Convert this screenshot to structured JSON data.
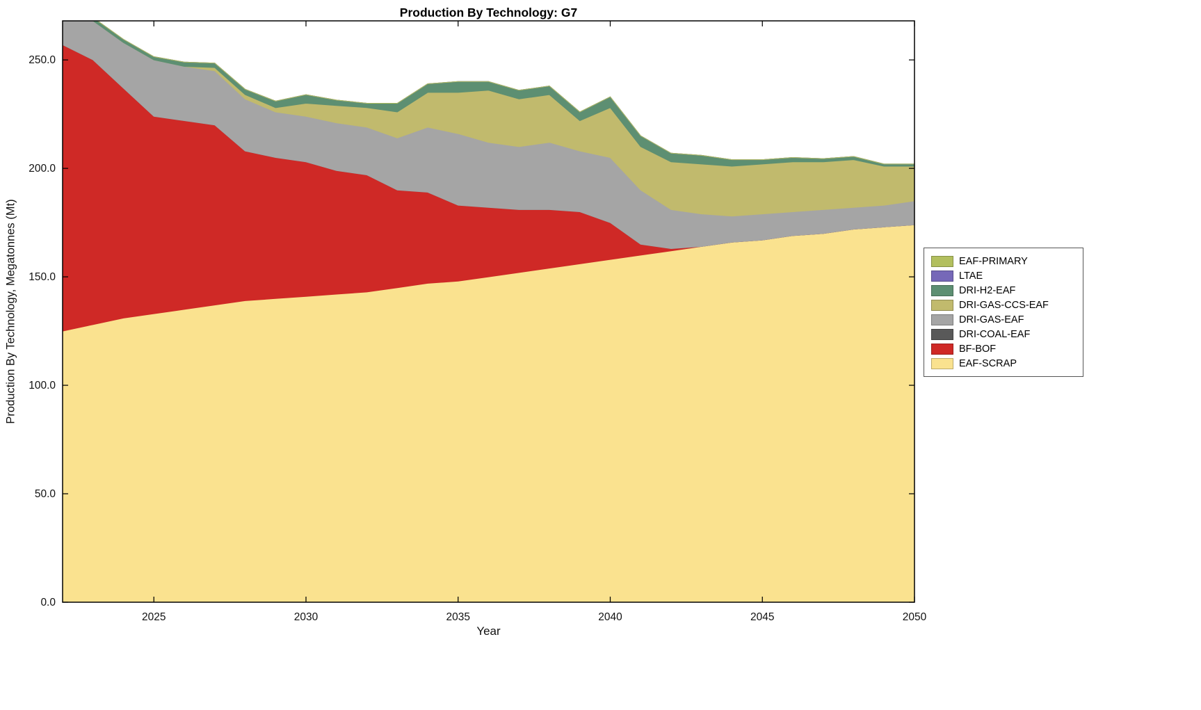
{
  "title": "Production By Technology: G7",
  "xlabel": "Year",
  "ylabel": "Production By Technology, Megatonnes (Mt)",
  "chart_data": {
    "type": "area",
    "stacked": true,
    "title": "Production By Technology: G7",
    "xlabel": "Year",
    "ylabel": "Production By Technology, Megatonnes (Mt)",
    "xlim": [
      2022,
      2050
    ],
    "ylim": [
      0,
      268
    ],
    "xticks": [
      2025,
      2030,
      2035,
      2040,
      2045,
      2050
    ],
    "yticks": [
      0,
      50,
      100,
      150,
      200,
      250
    ],
    "ytick_labels": [
      "0.0",
      "50.0",
      "100.0",
      "150.0",
      "200.0",
      "250.0"
    ],
    "grid": false,
    "legend_position": "right-outside",
    "x": [
      2022,
      2023,
      2024,
      2025,
      2026,
      2027,
      2028,
      2029,
      2030,
      2031,
      2032,
      2033,
      2034,
      2035,
      2036,
      2037,
      2038,
      2039,
      2040,
      2041,
      2042,
      2043,
      2044,
      2045,
      2046,
      2047,
      2048,
      2049,
      2050
    ],
    "series": [
      {
        "name": "EAF-SCRAP",
        "color": "#fae28f",
        "values": [
          125,
          128,
          131,
          133,
          135,
          137,
          139,
          140,
          141,
          142,
          143,
          145,
          147,
          148,
          150,
          152,
          154,
          156,
          158,
          160,
          162,
          164,
          166,
          167,
          169,
          170,
          172,
          173,
          174
        ]
      },
      {
        "name": "BF-BOF",
        "color": "#cf2926",
        "values": [
          132,
          122,
          106,
          91,
          87,
          83,
          69,
          65,
          62,
          57,
          54,
          45,
          42,
          35,
          32,
          29,
          27,
          24,
          17,
          5,
          1,
          0,
          0,
          0,
          0,
          0,
          0,
          0,
          0
        ]
      },
      {
        "name": "DRI-COAL-EAF",
        "color": "#595959",
        "values": [
          0,
          0,
          0,
          0,
          0,
          0,
          0,
          0,
          0,
          0,
          0,
          0,
          0,
          0,
          0,
          0,
          0,
          0,
          0,
          0,
          0,
          0,
          0,
          0,
          0,
          0,
          0,
          0,
          0
        ]
      },
      {
        "name": "DRI-GAS-EAF",
        "color": "#a5a5a5",
        "values": [
          15,
          18,
          21,
          26,
          25,
          25,
          24,
          21,
          21,
          22,
          22,
          24,
          30,
          33,
          30,
          29,
          31,
          28,
          30,
          25,
          18,
          15,
          12,
          12,
          11,
          11,
          10,
          10,
          11
        ]
      },
      {
        "name": "DRI-GAS-CCS-EAF",
        "color": "#c1ba6d",
        "values": [
          0,
          0,
          0,
          0,
          0,
          1.5,
          2,
          2,
          6,
          8,
          9,
          12,
          16,
          19,
          24,
          22,
          22,
          14,
          23,
          20,
          22,
          23,
          23,
          23,
          23,
          22,
          22,
          18,
          16
        ]
      },
      {
        "name": "DRI-H2-EAF",
        "color": "#5d8f72",
        "values": [
          1.5,
          1.5,
          1.5,
          1.5,
          2,
          2,
          2.5,
          3,
          4,
          2.5,
          2,
          4,
          4,
          5,
          4,
          4,
          4,
          4,
          5,
          5,
          4,
          4,
          3,
          2,
          2,
          1.5,
          1.5,
          1,
          1
        ]
      },
      {
        "name": "LTAE",
        "color": "#7668b8",
        "values": [
          0,
          0,
          0,
          0,
          0,
          0,
          0,
          0,
          0,
          0,
          0,
          0,
          0,
          0,
          0,
          0,
          0,
          0,
          0,
          0,
          0,
          0,
          0,
          0,
          0,
          0,
          0,
          0,
          0
        ]
      },
      {
        "name": "EAF-PRIMARY",
        "color": "#b2bf5e",
        "values": [
          0,
          0,
          0,
          0,
          0,
          0,
          0,
          0,
          0,
          0,
          0,
          0,
          0,
          0,
          0,
          0,
          0,
          0,
          0,
          0,
          0,
          0,
          0,
          0,
          0,
          0,
          0,
          0,
          0
        ]
      }
    ]
  }
}
